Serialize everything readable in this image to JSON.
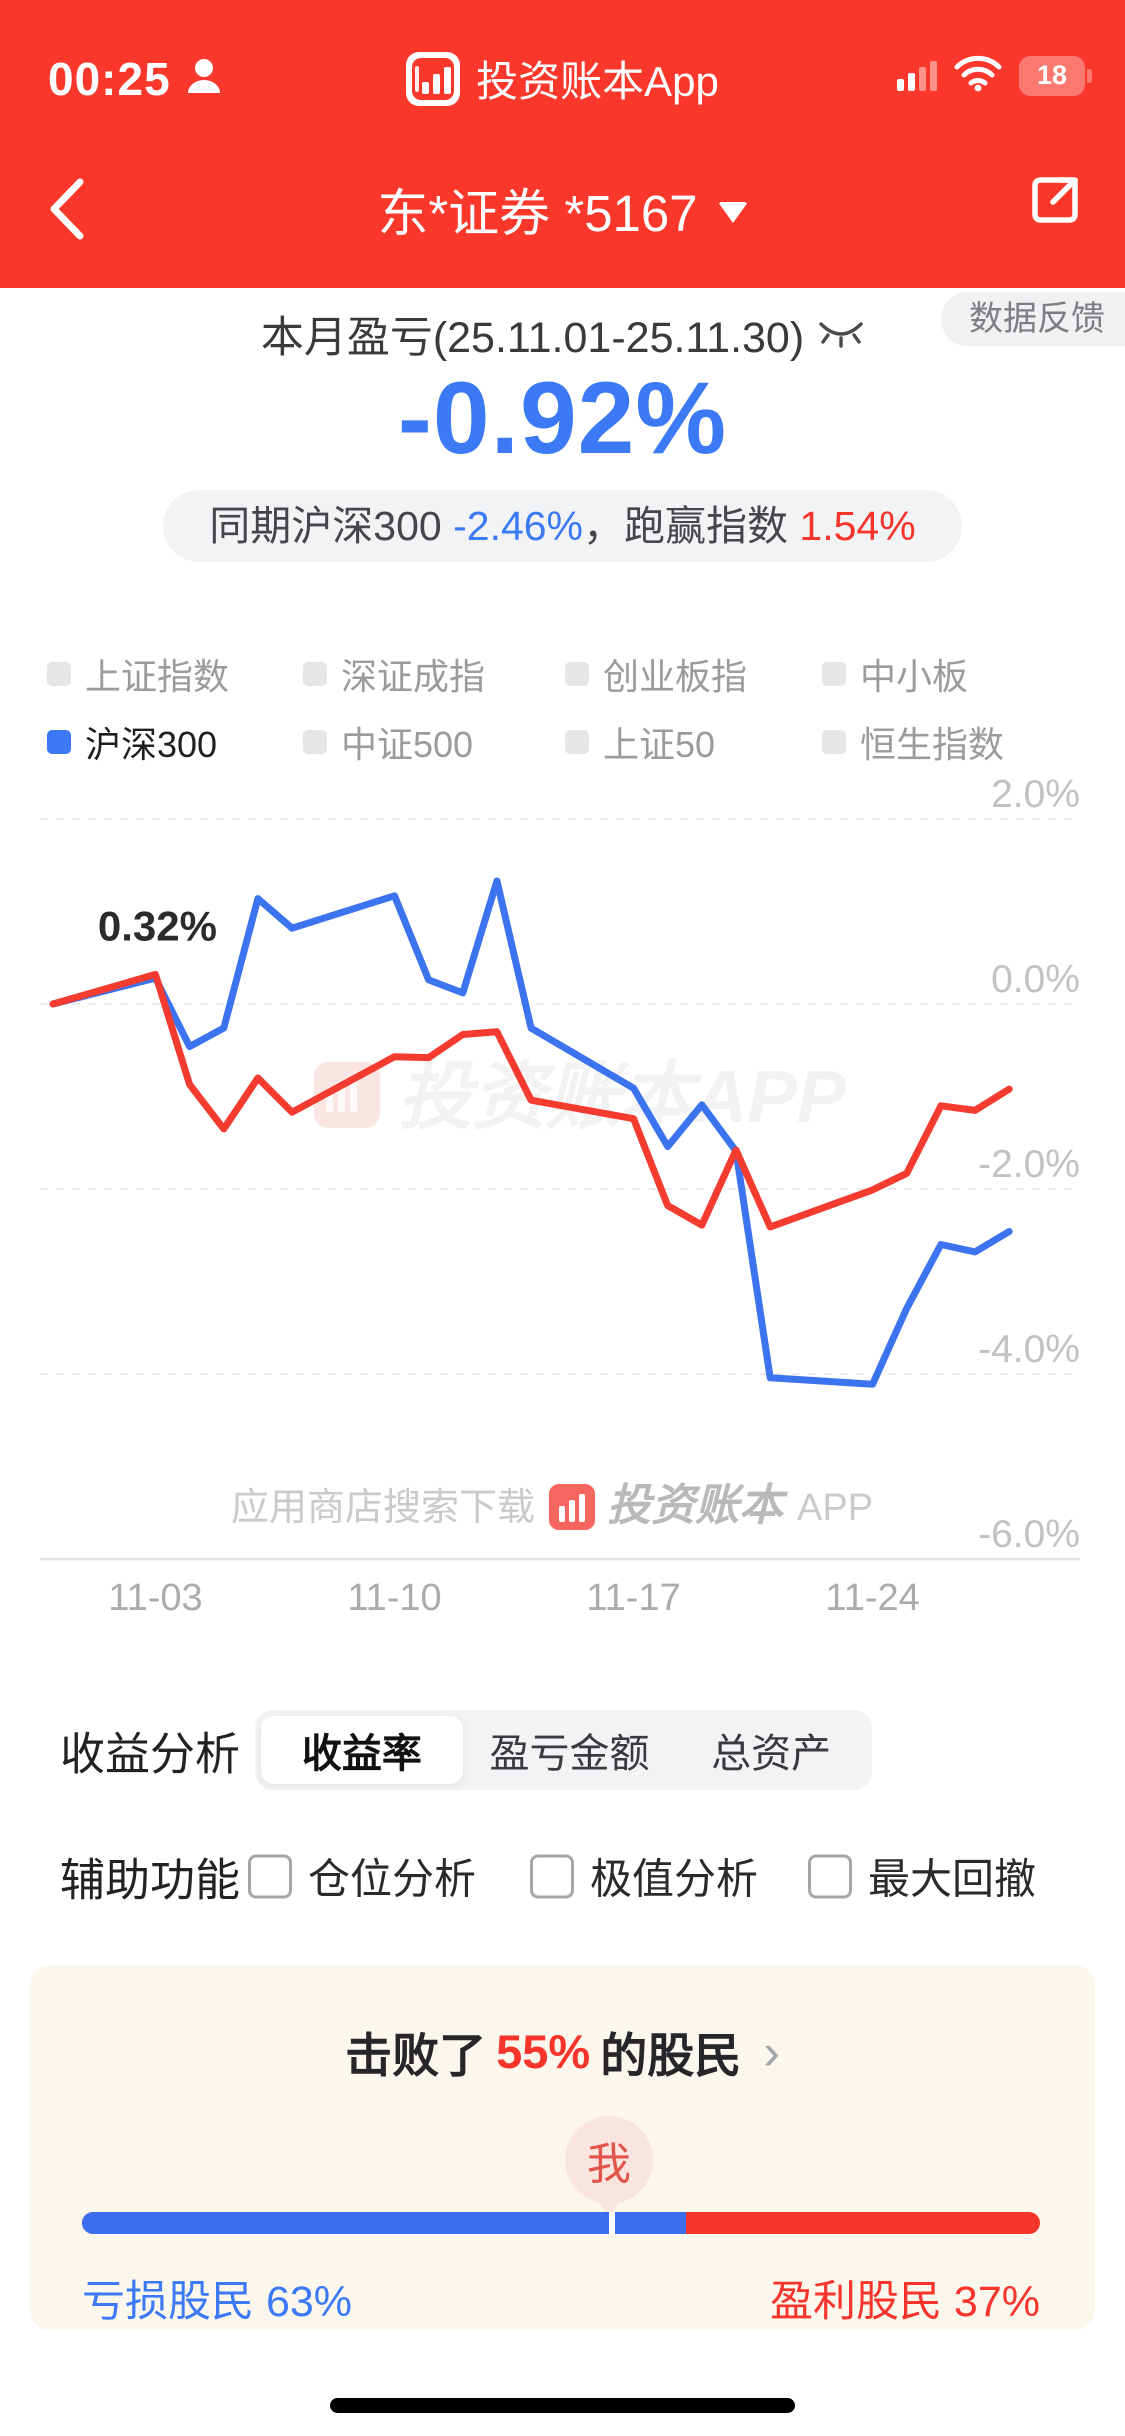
{
  "colors": {
    "header_red": "#F9382B",
    "accent_blue": "#3C79F4",
    "accent_red": "#F5352B",
    "line_blue": "#3B74EE",
    "line_red": "#F43B30",
    "card_bg": "#FCF7ED",
    "pill_bg": "#F2F3F5"
  },
  "status_bar": {
    "time": "00:25",
    "app_name": "投资账本App",
    "battery_level": "18"
  },
  "nav": {
    "title": "东*证券 *5167"
  },
  "summary": {
    "title": "本月盈亏(25.11.01-25.11.30)",
    "feedback_badge": "数据反馈",
    "value": "-0.92%",
    "compare_prefix": "同期沪深300 ",
    "compare_index": "-2.46%",
    "compare_mid": "，跑赢指数 ",
    "compare_beat": "1.54%"
  },
  "legend": {
    "items": [
      {
        "label": "上证指数",
        "active": false
      },
      {
        "label": "深证成指",
        "active": false
      },
      {
        "label": "创业板指",
        "active": false
      },
      {
        "label": "中小板",
        "active": false
      },
      {
        "label": "沪深300",
        "active": true
      },
      {
        "label": "中证500",
        "active": false
      },
      {
        "label": "上证50",
        "active": false
      },
      {
        "label": "恒生指数",
        "active": false
      }
    ]
  },
  "chart_data": {
    "type": "line",
    "title": "本月盈亏(25.11.01-25.11.30)",
    "x": [
      "10-31",
      "11-03",
      "11-04",
      "11-05",
      "11-06",
      "11-07",
      "11-10",
      "11-11",
      "11-12",
      "11-13",
      "11-14",
      "11-17",
      "11-18",
      "11-19",
      "11-20",
      "11-21",
      "11-24",
      "11-25",
      "11-26",
      "11-27",
      "11-28"
    ],
    "x_offsets": [
      0,
      3,
      4,
      5,
      6,
      7,
      10,
      11,
      12,
      13,
      14,
      17,
      18,
      19,
      20,
      21,
      24,
      25,
      26,
      27,
      28
    ],
    "series": [
      {
        "name": "沪深300",
        "color": "#3B74EE",
        "values": [
          0,
          0.28,
          -0.46,
          -0.26,
          1.14,
          0.82,
          1.17,
          0.26,
          0.12,
          1.33,
          -0.26,
          -0.91,
          -1.54,
          -1.09,
          -1.59,
          -4.04,
          -4.11,
          -3.29,
          -2.6,
          -2.68,
          -2.46
        ]
      },
      {
        "name": "账户收益率",
        "color": "#F43B30",
        "values": [
          0,
          0.32,
          -0.87,
          -1.35,
          -0.8,
          -1.17,
          -0.57,
          -0.58,
          -0.33,
          -0.3,
          -1.04,
          -1.24,
          -2.18,
          -2.39,
          -1.58,
          -2.41,
          -2.01,
          -1.83,
          -1.1,
          -1.15,
          -0.92
        ]
      }
    ],
    "annotation": {
      "text": "0.32%",
      "date": "11-03",
      "offset": 3,
      "value": 0.32
    },
    "y_axis": [
      {
        "label": "2.0%",
        "value": 2
      },
      {
        "label": "0.0%",
        "value": 0
      },
      {
        "label": "-2.0%",
        "value": -2
      },
      {
        "label": "-4.0%",
        "value": -4
      },
      {
        "label": "-6.0%",
        "value": -6
      }
    ],
    "x_axis": [
      {
        "label": "11-03",
        "offset": 3
      },
      {
        "label": "11-10",
        "offset": 10
      },
      {
        "label": "11-17",
        "offset": 17
      },
      {
        "label": "11-24",
        "offset": 24
      }
    ],
    "ylim": [
      -6,
      2
    ],
    "grid": "dashed",
    "legend_position": "top",
    "watermark_center": "投资账本APP",
    "watermark_bottom_prefix": "应用商店搜索下载",
    "watermark_bottom_brand": "投资账本",
    "watermark_bottom_suffix": "APP"
  },
  "analysis": {
    "section_label": "收益分析",
    "tabs": [
      {
        "label": "收益率",
        "active": true
      },
      {
        "label": "盈亏金额",
        "active": false
      },
      {
        "label": "总资产",
        "active": false
      }
    ]
  },
  "aux": {
    "label": "辅助功能",
    "options": [
      {
        "label": "仓位分析",
        "checked": false
      },
      {
        "label": "极值分析",
        "checked": false
      },
      {
        "label": "最大回撤",
        "checked": false
      }
    ]
  },
  "beat_card": {
    "title_prefix": "击败了",
    "beat_percent": "55%",
    "title_suffix": "的股民",
    "chevron": "›",
    "marker_label": "我",
    "marker_pct": 55,
    "loss_pct": 63,
    "win_pct": 37,
    "loss_label": "亏损股民 63%",
    "win_label": "盈利股民 37%"
  }
}
